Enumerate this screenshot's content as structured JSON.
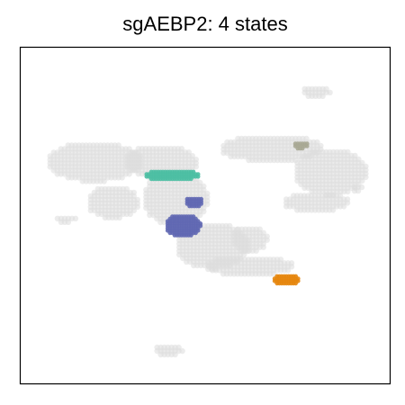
{
  "chart_data": {
    "type": "scatter",
    "title": "sgAEBP2: 4 states",
    "xlabel": "",
    "ylabel": "",
    "axis_ticks": "none",
    "grid": false,
    "legend": "none",
    "background_color": "#dcdcdc",
    "background_regions": [
      {
        "name": "upper-left-mass",
        "shape": "ellipse",
        "cx": 0.2,
        "cy": 0.66,
        "rx": 0.13,
        "ry": 0.06
      },
      {
        "name": "upper-center-mass",
        "shape": "ellipse",
        "cx": 0.38,
        "cy": 0.66,
        "rx": 0.1,
        "ry": 0.05
      },
      {
        "name": "center-column",
        "shape": "ellipse",
        "cx": 0.42,
        "cy": 0.55,
        "rx": 0.09,
        "ry": 0.08
      },
      {
        "name": "left-lobe",
        "shape": "ellipse",
        "cx": 0.25,
        "cy": 0.54,
        "rx": 0.07,
        "ry": 0.05
      },
      {
        "name": "right-arc-top",
        "shape": "ellipse",
        "cx": 0.68,
        "cy": 0.7,
        "rx": 0.14,
        "ry": 0.04
      },
      {
        "name": "right-arc-body",
        "shape": "ellipse",
        "cx": 0.84,
        "cy": 0.63,
        "rx": 0.1,
        "ry": 0.07
      },
      {
        "name": "right-arc-tail",
        "shape": "ellipse",
        "cx": 0.8,
        "cy": 0.54,
        "rx": 0.09,
        "ry": 0.03
      },
      {
        "name": "lower-middle",
        "shape": "ellipse",
        "cx": 0.52,
        "cy": 0.41,
        "rx": 0.1,
        "ry": 0.07
      },
      {
        "name": "lower-right-arm",
        "shape": "ellipse",
        "cx": 0.62,
        "cy": 0.35,
        "rx": 0.12,
        "ry": 0.03
      },
      {
        "name": "lower-small-blob",
        "shape": "ellipse",
        "cx": 0.62,
        "cy": 0.43,
        "rx": 0.05,
        "ry": 0.04
      },
      {
        "name": "small-left-island",
        "shape": "ellipse",
        "cx": 0.12,
        "cy": 0.49,
        "rx": 0.03,
        "ry": 0.012
      },
      {
        "name": "top-right-island",
        "shape": "ellipse",
        "cx": 0.8,
        "cy": 0.87,
        "rx": 0.04,
        "ry": 0.018
      },
      {
        "name": "bottom-island",
        "shape": "ellipse",
        "cx": 0.4,
        "cy": 0.1,
        "rx": 0.04,
        "ry": 0.018
      },
      {
        "name": "far-right-island",
        "shape": "ellipse",
        "cx": 0.91,
        "cy": 0.58,
        "rx": 0.015,
        "ry": 0.015
      }
    ],
    "series": [
      {
        "color": "#4dbfa3",
        "shape": "ellipse",
        "cx": 0.41,
        "cy": 0.62,
        "rx": 0.075,
        "ry": 0.017
      },
      {
        "color": "#6068b3",
        "shape": "ellipse",
        "cx": 0.47,
        "cy": 0.54,
        "rx": 0.025,
        "ry": 0.016
      },
      {
        "color": "#6068b3",
        "shape": "ellipse",
        "cx": 0.44,
        "cy": 0.47,
        "rx": 0.048,
        "ry": 0.034
      },
      {
        "color": "#e6860d",
        "shape": "ellipse",
        "cx": 0.72,
        "cy": 0.31,
        "rx": 0.038,
        "ry": 0.016
      },
      {
        "color": "#a8a895",
        "shape": "ellipse",
        "cx": 0.76,
        "cy": 0.71,
        "rx": 0.022,
        "ry": 0.011
      }
    ],
    "xlim": [
      0,
      1
    ],
    "ylim": [
      0,
      1
    ]
  }
}
